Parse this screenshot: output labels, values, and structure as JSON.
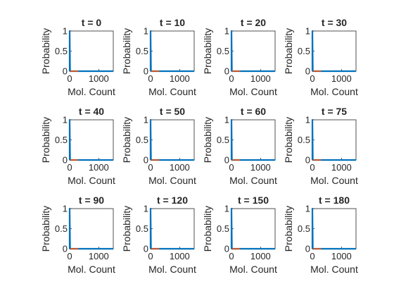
{
  "figure": {
    "background": "#ffffff",
    "axis_color": "#262626",
    "series_colors": {
      "blue": "#0072BD",
      "red": "#D95319"
    }
  },
  "chart_data": [
    {
      "type": "line",
      "title": "t = 0",
      "xlabel": "Mol. Count",
      "ylabel": "Probability",
      "xlim": [
        0,
        1500
      ],
      "ylim": [
        0,
        1
      ],
      "xticks": [
        "0",
        "1000"
      ],
      "yticks": [
        "0",
        "0.5",
        "1"
      ],
      "grid": false,
      "series": [
        {
          "color": "#0072BD",
          "x": [
            0,
            0,
            15,
            1500
          ],
          "y": [
            0,
            1,
            0,
            0
          ]
        },
        {
          "color": "#D95319",
          "x": [
            20,
            300
          ],
          "y": [
            0,
            0
          ]
        }
      ]
    },
    {
      "type": "line",
      "title": "t = 10",
      "xlabel": "Mol. Count",
      "ylabel": "Probability",
      "xlim": [
        0,
        1500
      ],
      "ylim": [
        0,
        1
      ],
      "xticks": [
        "0",
        "1000"
      ],
      "yticks": [
        "0",
        "0.5",
        "1"
      ],
      "grid": false,
      "series": [
        {
          "color": "#0072BD",
          "x": [
            0,
            0,
            15,
            1500
          ],
          "y": [
            0,
            1,
            0,
            0
          ]
        },
        {
          "color": "#D95319",
          "x": [
            20,
            300
          ],
          "y": [
            0,
            0
          ]
        }
      ]
    },
    {
      "type": "line",
      "title": "t = 20",
      "xlabel": "Mol. Count",
      "ylabel": "Probability",
      "xlim": [
        0,
        1500
      ],
      "ylim": [
        0,
        1
      ],
      "xticks": [
        "0",
        "1000"
      ],
      "yticks": [
        "0",
        "0.5",
        "1"
      ],
      "grid": false,
      "series": [
        {
          "color": "#0072BD",
          "x": [
            0,
            0,
            15,
            1500
          ],
          "y": [
            0,
            1,
            0,
            0
          ]
        },
        {
          "color": "#D95319",
          "x": [
            20,
            300
          ],
          "y": [
            0,
            0
          ]
        }
      ]
    },
    {
      "type": "line",
      "title": "t = 30",
      "xlabel": "Mol. Count",
      "ylabel": "Probability",
      "xlim": [
        0,
        1500
      ],
      "ylim": [
        0,
        1
      ],
      "xticks": [
        "0",
        "1000"
      ],
      "yticks": [
        "0",
        "0.5",
        "1"
      ],
      "grid": false,
      "series": [
        {
          "color": "#0072BD",
          "x": [
            0,
            0,
            15,
            1500
          ],
          "y": [
            0,
            1,
            0,
            0
          ]
        },
        {
          "color": "#D95319",
          "x": [
            20,
            300
          ],
          "y": [
            0,
            0
          ]
        }
      ]
    },
    {
      "type": "line",
      "title": "t = 40",
      "xlabel": "Mol. Count",
      "ylabel": "Probability",
      "xlim": [
        0,
        1500
      ],
      "ylim": [
        0,
        1
      ],
      "xticks": [
        "0",
        "1000"
      ],
      "yticks": [
        "0",
        "0.5",
        "1"
      ],
      "grid": false,
      "series": [
        {
          "color": "#0072BD",
          "x": [
            0,
            0,
            15,
            1500
          ],
          "y": [
            0,
            1,
            0,
            0
          ]
        },
        {
          "color": "#D95319",
          "x": [
            20,
            300
          ],
          "y": [
            0,
            0
          ]
        }
      ]
    },
    {
      "type": "line",
      "title": "t = 50",
      "xlabel": "Mol. Count",
      "ylabel": "Probability",
      "xlim": [
        0,
        1500
      ],
      "ylim": [
        0,
        1
      ],
      "xticks": [
        "0",
        "1000"
      ],
      "yticks": [
        "0",
        "0.5",
        "1"
      ],
      "grid": false,
      "series": [
        {
          "color": "#0072BD",
          "x": [
            0,
            0,
            15,
            1500
          ],
          "y": [
            0,
            1,
            0,
            0
          ]
        },
        {
          "color": "#D95319",
          "x": [
            20,
            300
          ],
          "y": [
            0,
            0
          ]
        }
      ]
    },
    {
      "type": "line",
      "title": "t = 60",
      "xlabel": "Mol. Count",
      "ylabel": "Probability",
      "xlim": [
        0,
        1500
      ],
      "ylim": [
        0,
        1
      ],
      "xticks": [
        "0",
        "1000"
      ],
      "yticks": [
        "0",
        "0.5",
        "1"
      ],
      "grid": false,
      "series": [
        {
          "color": "#0072BD",
          "x": [
            0,
            0,
            15,
            1500
          ],
          "y": [
            0,
            1,
            0,
            0
          ]
        },
        {
          "color": "#D95319",
          "x": [
            20,
            300
          ],
          "y": [
            0,
            0
          ]
        }
      ]
    },
    {
      "type": "line",
      "title": "t = 75",
      "xlabel": "Mol. Count",
      "ylabel": "Probability",
      "xlim": [
        0,
        1500
      ],
      "ylim": [
        0,
        1
      ],
      "xticks": [
        "0",
        "1000"
      ],
      "yticks": [
        "0",
        "0.5",
        "1"
      ],
      "grid": false,
      "series": [
        {
          "color": "#0072BD",
          "x": [
            0,
            0,
            15,
            1500
          ],
          "y": [
            0,
            1,
            0,
            0
          ]
        },
        {
          "color": "#D95319",
          "x": [
            20,
            300
          ],
          "y": [
            0,
            0
          ]
        }
      ]
    },
    {
      "type": "line",
      "title": "t = 90",
      "xlabel": "Mol. Count",
      "ylabel": "Probability",
      "xlim": [
        0,
        1500
      ],
      "ylim": [
        0,
        1
      ],
      "xticks": [
        "0",
        "1000"
      ],
      "yticks": [
        "0",
        "0.5",
        "1"
      ],
      "grid": false,
      "series": [
        {
          "color": "#0072BD",
          "x": [
            0,
            0,
            15,
            1500
          ],
          "y": [
            0,
            1,
            0,
            0
          ]
        },
        {
          "color": "#D95319",
          "x": [
            20,
            300
          ],
          "y": [
            0,
            0
          ]
        }
      ]
    },
    {
      "type": "line",
      "title": "t = 120",
      "xlabel": "Mol. Count",
      "ylabel": "Probability",
      "xlim": [
        0,
        1500
      ],
      "ylim": [
        0,
        1
      ],
      "xticks": [
        "0",
        "1000"
      ],
      "yticks": [
        "0",
        "0.5",
        "1"
      ],
      "grid": false,
      "series": [
        {
          "color": "#0072BD",
          "x": [
            0,
            0,
            15,
            1500
          ],
          "y": [
            0,
            1,
            0,
            0
          ]
        },
        {
          "color": "#D95319",
          "x": [
            20,
            300
          ],
          "y": [
            0,
            0
          ]
        }
      ]
    },
    {
      "type": "line",
      "title": "t = 150",
      "xlabel": "Mol. Count",
      "ylabel": "Probability",
      "xlim": [
        0,
        1500
      ],
      "ylim": [
        0,
        1
      ],
      "xticks": [
        "0",
        "1000"
      ],
      "yticks": [
        "0",
        "0.5",
        "1"
      ],
      "grid": false,
      "series": [
        {
          "color": "#0072BD",
          "x": [
            0,
            0,
            15,
            1500
          ],
          "y": [
            0,
            1,
            0,
            0
          ]
        },
        {
          "color": "#D95319",
          "x": [
            20,
            300
          ],
          "y": [
            0,
            0
          ]
        }
      ]
    },
    {
      "type": "line",
      "title": "t = 180",
      "xlabel": "Mol. Count",
      "ylabel": "Probability",
      "xlim": [
        0,
        1500
      ],
      "ylim": [
        0,
        1
      ],
      "xticks": [
        "0",
        "1000"
      ],
      "yticks": [
        "0",
        "0.5",
        "1"
      ],
      "grid": false,
      "series": [
        {
          "color": "#0072BD",
          "x": [
            0,
            0,
            15,
            1500
          ],
          "y": [
            0,
            1,
            0,
            0
          ]
        },
        {
          "color": "#D95319",
          "x": [
            20,
            300
          ],
          "y": [
            0,
            0
          ]
        }
      ]
    }
  ]
}
